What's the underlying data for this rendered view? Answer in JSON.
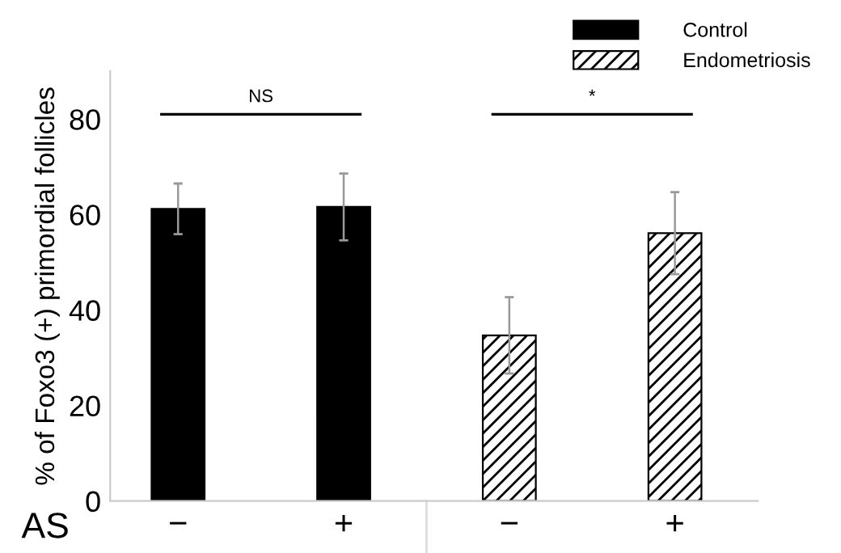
{
  "chart_data": {
    "type": "bar",
    "ylabel": "% of Foxo3 (+) primordial follicles",
    "xlabel": "AS",
    "categories": [
      "−",
      "+",
      "−",
      "+"
    ],
    "series": [
      {
        "name": "Control",
        "color": "#000000",
        "values": [
          61.2,
          61.6,
          null,
          null
        ],
        "errors": [
          5.3,
          7,
          null,
          null
        ]
      },
      {
        "name": "Endometriosis",
        "color": "#000000",
        "values": [
          null,
          null,
          34.7,
          56.1
        ],
        "errors": [
          null,
          null,
          8,
          8.6
        ]
      }
    ],
    "ylim": [
      0,
      90
    ],
    "yticks": [
      0,
      20,
      40,
      60,
      80
    ],
    "grid": false,
    "legend": "top right",
    "annotations": [
      "NS",
      "*"
    ]
  }
}
